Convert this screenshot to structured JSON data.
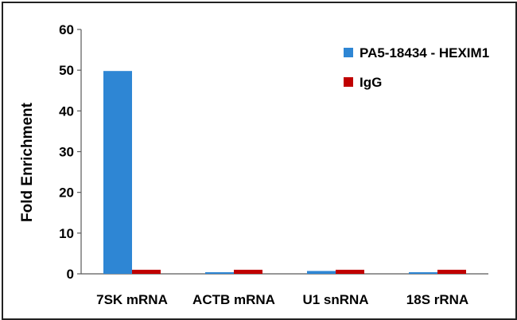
{
  "chart_data": {
    "type": "bar",
    "categories": [
      "7SK mRNA",
      "ACTB mRNA",
      "U1 snRNA",
      "18S rRNA"
    ],
    "series": [
      {
        "name": "PA5-18434 - HEXIM1",
        "values": [
          49.8,
          0.4,
          0.7,
          0.4
        ],
        "color": "#2e86d4"
      },
      {
        "name": "IgG",
        "values": [
          1.0,
          1.0,
          1.0,
          1.0
        ],
        "color": "#c00000"
      }
    ],
    "xlabel": "",
    "ylabel": "Fold Enrichment",
    "ylim": [
      0,
      60
    ],
    "yticks": [
      0,
      10,
      20,
      30,
      40,
      50,
      60
    ],
    "grid": false,
    "legend_position": "top-right"
  }
}
